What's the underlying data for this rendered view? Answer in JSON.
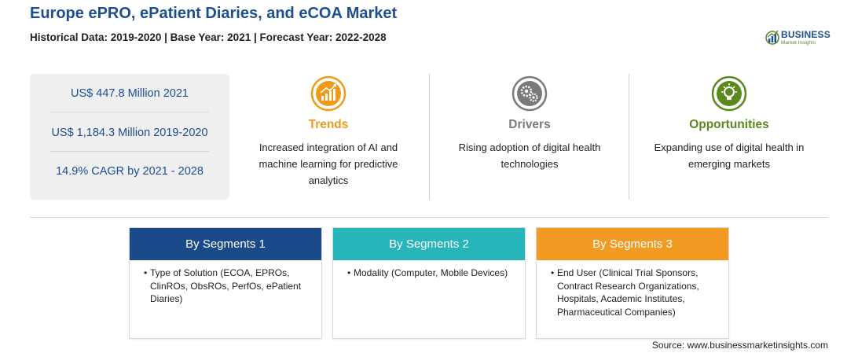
{
  "header": {
    "title": "Europe ePRO, ePatient Diaries, and eCOA Market",
    "subtitle": "Historical Data: 2019-2020 | Base Year: 2021 | Forecast Year: 2022-2028"
  },
  "logo": {
    "line1": "BUSINESS",
    "line2": "Market Insights"
  },
  "stats": [
    "US$ 447.8 Million 2021",
    "US$ 1,184.3 Million 2019-2020",
    "14.9% CAGR by 2021 - 2028"
  ],
  "highlights": {
    "trends": {
      "heading": "Trends",
      "text": "Increased integration of AI and machine learning for predictive analytics",
      "icon": "growth-chart-icon",
      "color": "#f09a1a"
    },
    "drivers": {
      "heading": "Drivers",
      "text": "Rising adoption of digital health technologies",
      "icon": "gears-icon",
      "color": "#7a7a7a"
    },
    "opportunities": {
      "heading": "Opportunities",
      "text": "Expanding use of digital health in emerging markets",
      "icon": "lightbulb-icon",
      "color": "#5a8a1f"
    }
  },
  "segments": [
    {
      "heading": "By Segments 1",
      "color": "#1a4a8a",
      "items": [
        "Type of Solution (ECOA, EPROs, ClinROs, ObsROs, PerfOs, ePatient Diaries)"
      ]
    },
    {
      "heading": "By Segments 2",
      "color": "#27b5b9",
      "items": [
        "Modality (Computer, Mobile Devices)"
      ]
    },
    {
      "heading": "By Segments 3",
      "color": "#f39a22",
      "items": [
        "End User (Clinical Trial Sponsors, Contract Research Organizations, Hospitals, Academic Institutes, Pharmaceutical Companies)"
      ]
    }
  ],
  "source": "Source: www.businessmarketinsights.com"
}
